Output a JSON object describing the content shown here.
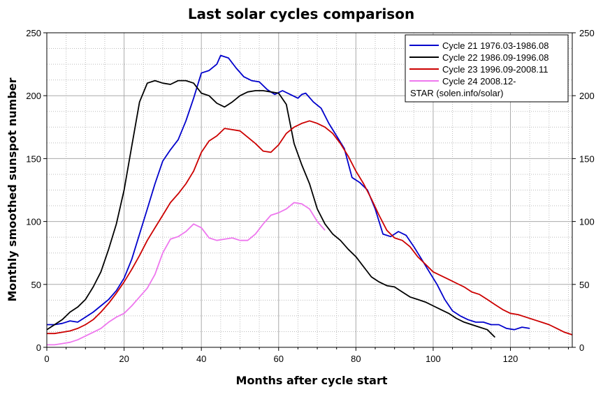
{
  "chart_data": {
    "type": "line",
    "title": "Last solar cycles comparison",
    "xlabel": "Months after cycle start",
    "ylabel": "Monthly smoothed sunspot number",
    "xlim": [
      0,
      136
    ],
    "ylim": [
      0,
      250
    ],
    "x_ticks": [
      0,
      20,
      40,
      60,
      80,
      100,
      120
    ],
    "y_ticks": [
      0,
      50,
      100,
      150,
      200,
      250
    ],
    "grid": true,
    "legend_position": "top-right",
    "series": [
      {
        "name": "Cycle 21 1976.03-1986.08",
        "color": "#0000cc",
        "x": [
          0,
          2,
          4,
          6,
          8,
          10,
          12,
          14,
          16,
          18,
          20,
          22,
          24,
          26,
          28,
          30,
          32,
          34,
          36,
          38,
          40,
          42,
          44,
          45,
          47,
          49,
          51,
          53,
          55,
          57,
          59,
          61,
          63,
          65,
          66,
          67,
          69,
          71,
          73,
          75,
          77,
          79,
          81,
          83,
          85,
          87,
          89,
          91,
          93,
          95,
          97,
          99,
          101,
          103,
          105,
          107,
          109,
          111,
          113,
          115,
          117,
          119,
          121,
          123,
          125
        ],
        "y": [
          18,
          18,
          19,
          21,
          20,
          24,
          28,
          33,
          38,
          45,
          55,
          70,
          90,
          110,
          130,
          148,
          157,
          165,
          180,
          198,
          218,
          220,
          225,
          232,
          230,
          222,
          215,
          212,
          211,
          205,
          201,
          204,
          201,
          198,
          201,
          202,
          195,
          190,
          178,
          168,
          158,
          135,
          131,
          125,
          110,
          90,
          88,
          92,
          89,
          80,
          70,
          60,
          50,
          38,
          29,
          25,
          22,
          20,
          20,
          18,
          18,
          15,
          14,
          16,
          15
        ]
      },
      {
        "name": "Cycle 22 1986.09-1996.08",
        "color": "#000000",
        "x": [
          0,
          2,
          4,
          6,
          8,
          10,
          12,
          14,
          16,
          18,
          20,
          22,
          24,
          26,
          28,
          30,
          32,
          34,
          36,
          38,
          40,
          42,
          44,
          46,
          48,
          50,
          52,
          54,
          56,
          58,
          60,
          62,
          64,
          66,
          68,
          70,
          72,
          74,
          76,
          78,
          80,
          82,
          84,
          86,
          88,
          90,
          92,
          94,
          96,
          98,
          100,
          102,
          104,
          106,
          108,
          110,
          112,
          114,
          116
        ],
        "y": [
          14,
          18,
          22,
          28,
          32,
          38,
          48,
          60,
          78,
          98,
          125,
          160,
          195,
          210,
          212,
          210,
          209,
          212,
          212,
          210,
          202,
          200,
          194,
          191,
          195,
          200,
          203,
          204,
          204,
          203,
          202,
          193,
          162,
          145,
          130,
          110,
          98,
          90,
          85,
          78,
          72,
          64,
          56,
          52,
          49,
          48,
          44,
          40,
          38,
          36,
          33,
          30,
          27,
          23,
          20,
          18,
          16,
          14,
          8
        ]
      },
      {
        "name": "Cycle 23 1996.09-2008.11",
        "color": "#cc0000",
        "x": [
          0,
          2,
          4,
          6,
          8,
          10,
          12,
          14,
          16,
          18,
          20,
          22,
          24,
          26,
          28,
          30,
          32,
          34,
          36,
          38,
          40,
          42,
          44,
          46,
          48,
          50,
          52,
          54,
          56,
          58,
          60,
          62,
          64,
          66,
          68,
          70,
          72,
          74,
          76,
          78,
          80,
          82,
          84,
          86,
          88,
          90,
          92,
          94,
          96,
          98,
          100,
          102,
          104,
          106,
          108,
          110,
          112,
          114,
          116,
          118,
          120,
          122,
          124,
          126,
          128,
          130,
          132,
          134,
          136
        ],
        "y": [
          11,
          11,
          12,
          13,
          15,
          18,
          22,
          28,
          35,
          43,
          52,
          62,
          73,
          85,
          95,
          105,
          115,
          122,
          130,
          140,
          155,
          164,
          168,
          174,
          173,
          172,
          167,
          162,
          156,
          155,
          161,
          170,
          175,
          178,
          180,
          178,
          175,
          170,
          162,
          152,
          140,
          130,
          118,
          105,
          93,
          87,
          85,
          80,
          72,
          66,
          60,
          57,
          54,
          51,
          48,
          44,
          42,
          38,
          34,
          30,
          27,
          26,
          24,
          22,
          20,
          18,
          15,
          12,
          10
        ]
      },
      {
        "name": "Cycle 24 2008.12-",
        "color": "#ee77ee",
        "x": [
          0,
          2,
          4,
          6,
          8,
          10,
          12,
          14,
          16,
          18,
          20,
          22,
          24,
          26,
          28,
          30,
          32,
          34,
          36,
          38,
          40,
          42,
          44,
          46,
          48,
          50,
          52,
          54,
          56,
          58,
          60,
          62,
          64,
          66,
          68,
          70,
          72
        ],
        "y": [
          2,
          2,
          3,
          4,
          6,
          9,
          12,
          15,
          20,
          24,
          27,
          33,
          40,
          47,
          58,
          75,
          86,
          88,
          92,
          98,
          95,
          87,
          85,
          86,
          87,
          85,
          85,
          90,
          98,
          105,
          107,
          110,
          115,
          114,
          110,
          100,
          93
        ]
      }
    ],
    "legend_extra": "STAR (solen.info/solar)"
  }
}
